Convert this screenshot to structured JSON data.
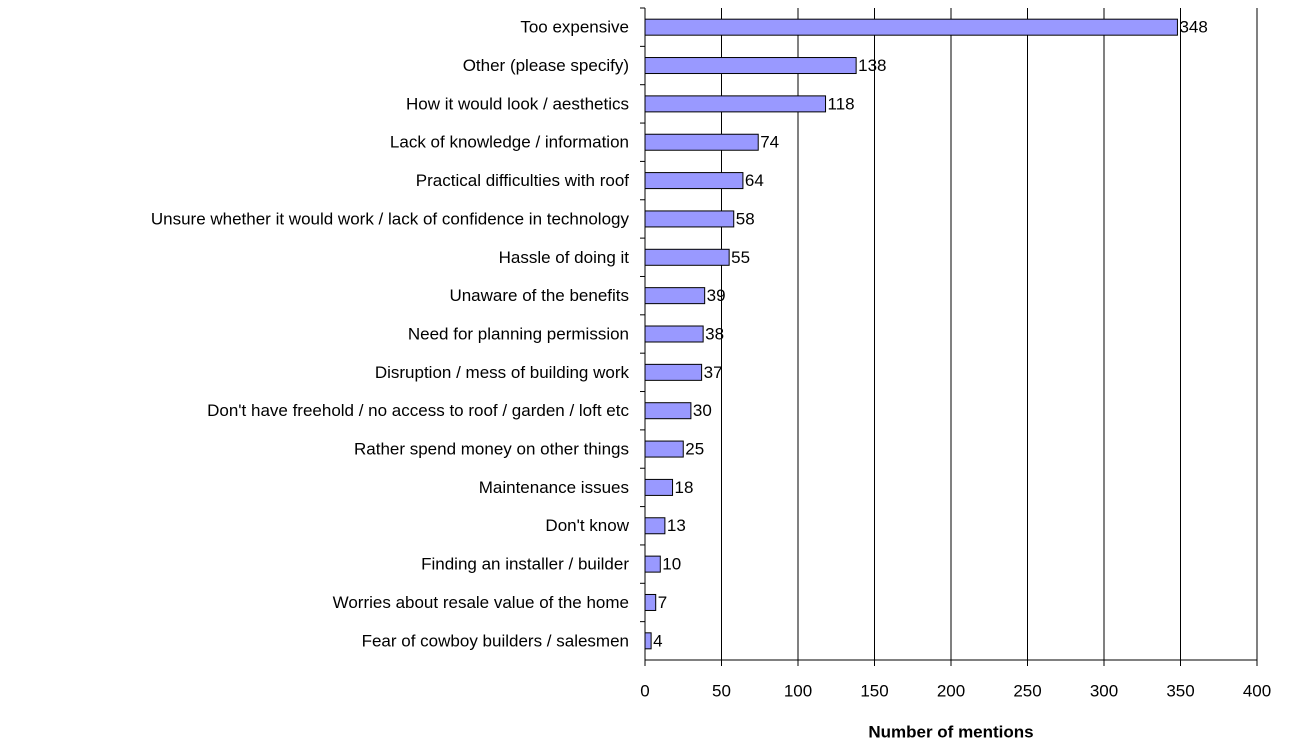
{
  "chart_data": {
    "type": "bar",
    "orientation": "horizontal",
    "x_label": "Number of mentions",
    "categories": [
      "Too expensive",
      "Other (please specify)",
      "How it would look / aesthetics",
      "Lack of knowledge / information",
      "Practical difficulties with roof",
      "Unsure whether it would work / lack of confidence in technology",
      "Hassle of doing it",
      "Unaware of the benefits",
      "Need for planning permission",
      "Disruption / mess of building work",
      "Don't have freehold / no access to roof / garden / loft etc",
      "Rather spend money on other things",
      "Maintenance issues",
      "Don't know",
      "Finding an installer / builder",
      "Worries about resale value of the home",
      "Fear of cowboy builders / salesmen"
    ],
    "values": [
      348,
      138,
      118,
      74,
      64,
      58,
      55,
      39,
      38,
      37,
      30,
      25,
      18,
      13,
      10,
      7,
      4
    ],
    "color": "#9999ff",
    "xlim": [
      0,
      400
    ],
    "xticks": [
      0,
      50,
      100,
      150,
      200,
      250,
      300,
      350,
      400
    ],
    "grid": true
  }
}
